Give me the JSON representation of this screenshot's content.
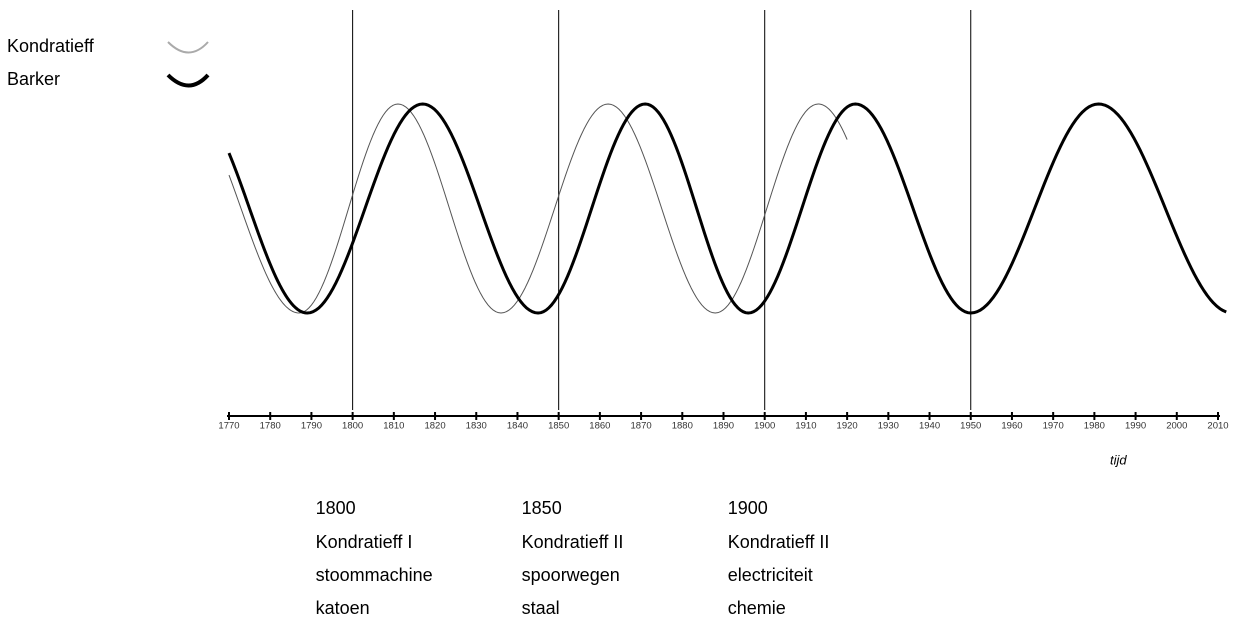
{
  "chart_data": {
    "type": "line",
    "x_label": "tijd",
    "xlim": [
      1770,
      2010
    ],
    "xticks": [
      1770,
      1780,
      1790,
      1800,
      1810,
      1820,
      1830,
      1840,
      1850,
      1860,
      1870,
      1880,
      1890,
      1900,
      1910,
      1920,
      1930,
      1940,
      1950,
      1960,
      1970,
      1980,
      1990,
      2000,
      2010
    ],
    "vlines": [
      1800,
      1850,
      1900,
      1950
    ],
    "series": [
      {
        "name": "Kondratieff",
        "color": "#555555",
        "line_width": 1,
        "x": [
          1770,
          1787,
          1811,
          1836,
          1862,
          1888,
          1913,
          1920
        ],
        "values": [
          0.32,
          -1,
          1,
          -1,
          1,
          -1,
          1,
          0.66
        ]
      },
      {
        "name": "Barker",
        "color": "#000000",
        "line_width": 3,
        "x": [
          1770,
          1789,
          1817,
          1845,
          1871,
          1896,
          1922,
          1950,
          1981,
          2012
        ],
        "values": [
          0.53,
          -1,
          1,
          -1,
          1,
          -1,
          1,
          -1,
          1,
          -0.99
        ]
      }
    ],
    "annotations": [
      {
        "year": 1800,
        "lines": [
          "Kondratieff I",
          "stoommachine",
          "katoen"
        ]
      },
      {
        "year": 1850,
        "lines": [
          "Kondratieff II",
          "spoorwegen",
          "staal"
        ]
      },
      {
        "year": 1900,
        "lines": [
          "Kondratieff II",
          "electriciteit",
          "chemie"
        ]
      }
    ]
  }
}
